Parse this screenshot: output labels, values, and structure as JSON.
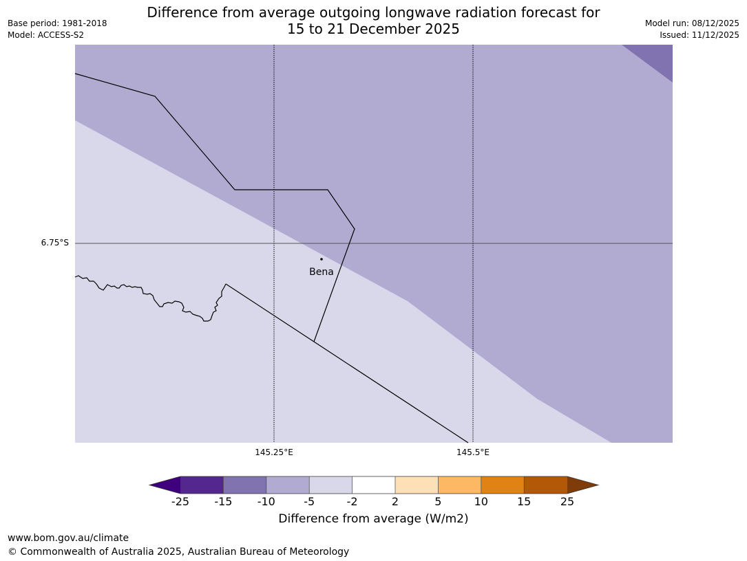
{
  "title": {
    "line1": "Difference from average outgoing longwave radiation forecast for",
    "line2": "15 to 21 December 2025"
  },
  "meta": {
    "base_period": "Base period: 1981-2018",
    "model": "Model: ACCESS-S2",
    "model_run": "Model run: 08/12/2025",
    "issued": "Issued: 11/12/2025"
  },
  "map": {
    "latitude_label": "6.75°S",
    "longitude_labels": [
      "145.25°E",
      "145.5°E"
    ],
    "town": "Bena",
    "colors": {
      "band_neg2_to_neg5": "#d8d8ea",
      "band_neg5_to_neg10": "#b1abd2",
      "band_neg10_to_neg15": "#8172b0"
    }
  },
  "colorbar": {
    "title": "Difference from average (W/m2)",
    "ticks": [
      "-25",
      "-15",
      "-10",
      "-5",
      "-2",
      "2",
      "5",
      "10",
      "15",
      "25"
    ],
    "colors": [
      "#3f007d",
      "#54278f",
      "#8172b0",
      "#b1abd2",
      "#d8d8ea",
      "#ffffff",
      "#fee0b6",
      "#fdb863",
      "#e08214",
      "#b35806",
      "#7f3b08"
    ]
  },
  "footer": {
    "url": "www.bom.gov.au/climate",
    "copyright": "© Commonwealth of Australia 2025, Australian Bureau of Meteorology"
  }
}
